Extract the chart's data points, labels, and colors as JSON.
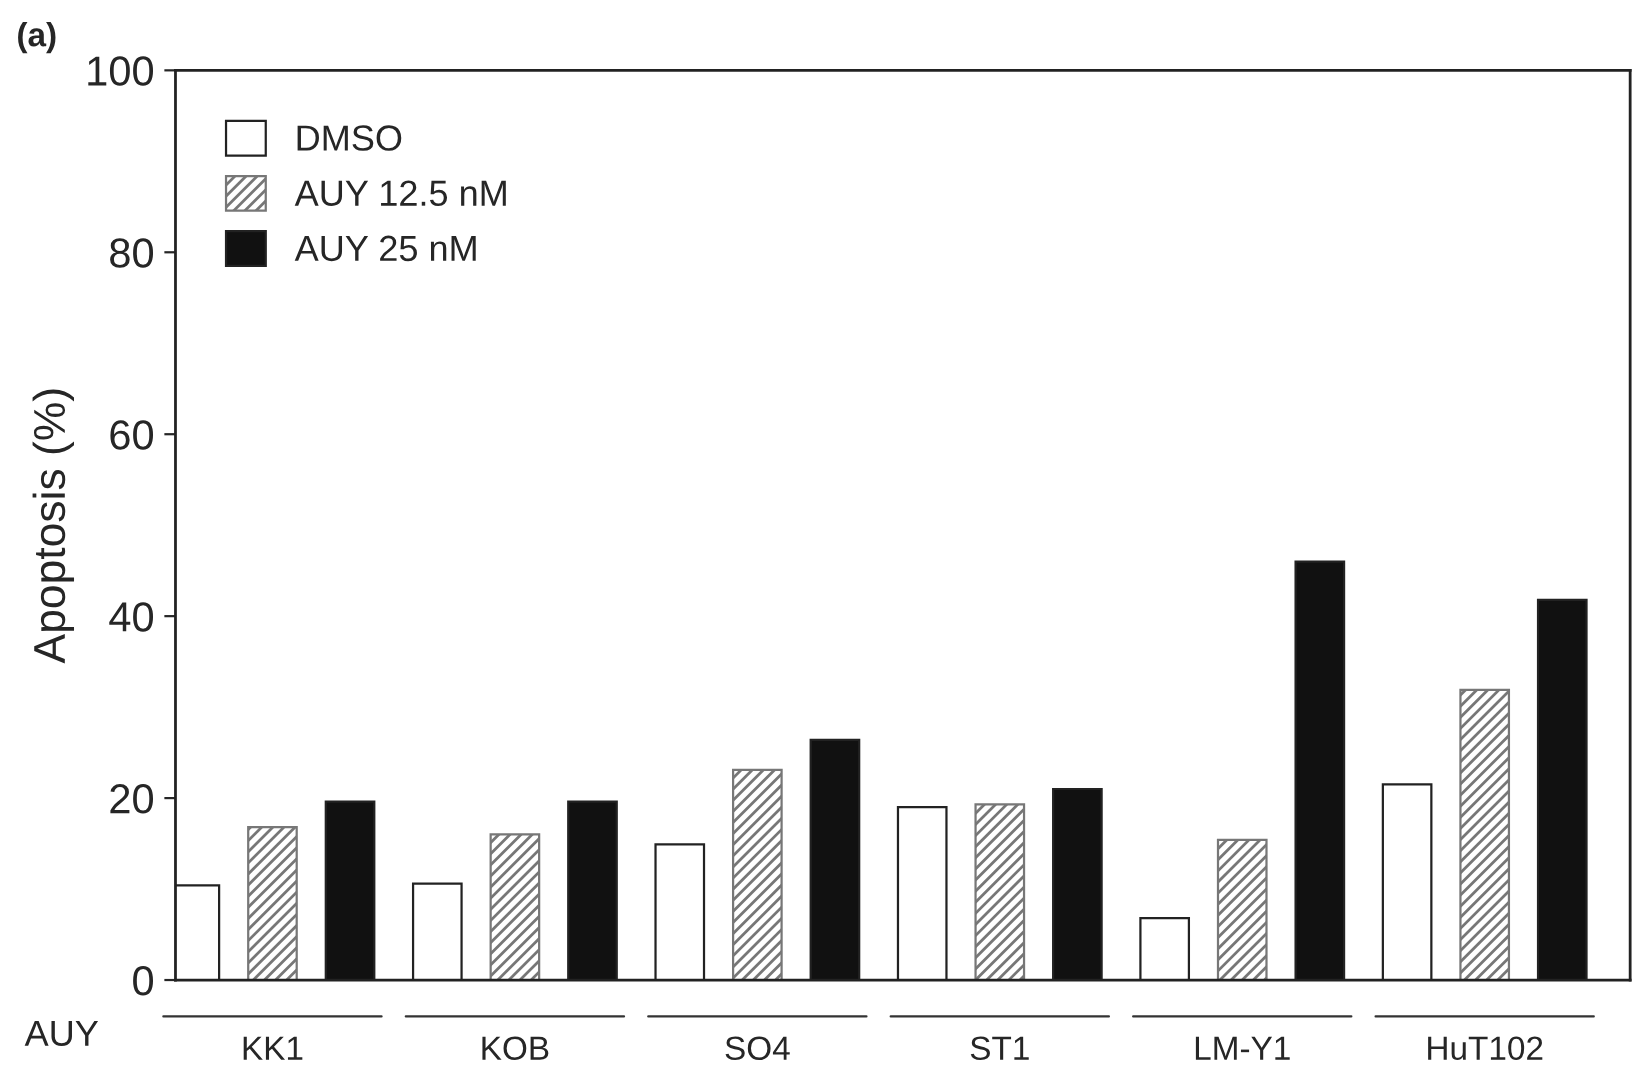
{
  "chart_data": {
    "type": "bar",
    "ylabel": "Apoptosis (%)",
    "categories": [
      "KK1",
      "KOB",
      "SO4",
      "ST1",
      "LM-Y1",
      "HuT102"
    ],
    "series": [
      {
        "name": "DMSO",
        "color": "#ffffff",
        "values": [
          10.4,
          10.6,
          14.9,
          19.0,
          6.8,
          21.5
        ]
      },
      {
        "name": "AUY 12.5 nM",
        "color": "#777777",
        "values": [
          16.8,
          16.0,
          23.1,
          19.3,
          15.4,
          31.9
        ]
      },
      {
        "name": "AUY 25 nM",
        "color": "#111111",
        "values": [
          19.6,
          19.6,
          26.4,
          21.0,
          46.0,
          41.8
        ]
      }
    ],
    "ylim": [
      0,
      100
    ],
    "yticks": [
      0,
      20,
      40,
      60,
      80,
      100
    ],
    "grid": false,
    "legend": "top left",
    "annotations": [
      "(a)",
      "AUY"
    ]
  }
}
